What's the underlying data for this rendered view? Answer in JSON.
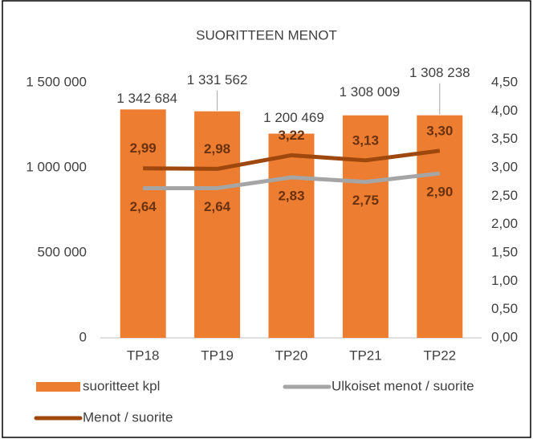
{
  "chart_data": {
    "type": "bar_line",
    "title": "SUORITTEEN MENOT",
    "categories": [
      "TP18",
      "TP19",
      "TP20",
      "TP21",
      "TP22"
    ],
    "series": [
      {
        "name": "suoritteet kpl",
        "type": "bar",
        "color": "#ed7d31",
        "values": [
          1342684,
          1331562,
          1200469,
          1308009,
          1308238
        ],
        "value_labels": [
          "1 342 684",
          "1 331 562",
          "1 200 469",
          "1 308 009",
          "1 308 238"
        ]
      },
      {
        "name": "Ulkoiset menot / suorite",
        "type": "line",
        "axis": "y2",
        "color": "#a5a5a5",
        "values": [
          2.64,
          2.64,
          2.83,
          2.75,
          2.9
        ],
        "value_labels": [
          "2,64",
          "2,64",
          "2,83",
          "2,75",
          "2,90"
        ]
      },
      {
        "name": "Menot / suorite",
        "type": "line",
        "axis": "y2",
        "color": "#9e480e",
        "values": [
          2.99,
          2.98,
          3.22,
          3.13,
          3.3
        ],
        "value_labels": [
          "2,99",
          "2,98",
          "3,22",
          "3,13",
          "3,30"
        ]
      }
    ],
    "ylim": [
      0,
      1500000
    ],
    "yticks": [
      0,
      {
        "value": 500000,
        "label": "500 000"
      },
      {
        "value": 1000000,
        "label": "1 000 000"
      },
      {
        "value": 1500000,
        "label": "1 500 000"
      }
    ],
    "y2lim": [
      0,
      4.5
    ],
    "y2ticks": [
      {
        "value": 0,
        "label": "0,00"
      },
      {
        "value": 0.5,
        "label": "0,50"
      },
      {
        "value": 1,
        "label": "1,00"
      },
      {
        "value": 1.5,
        "label": "1,50"
      },
      {
        "value": 2,
        "label": "2,00"
      },
      {
        "value": 2.5,
        "label": "2,50"
      },
      {
        "value": 3,
        "label": "3,00"
      },
      {
        "value": 3.5,
        "label": "3,50"
      },
      {
        "value": 4,
        "label": "4,00"
      },
      {
        "value": 4.5,
        "label": "4,50"
      }
    ],
    "grid": false
  }
}
